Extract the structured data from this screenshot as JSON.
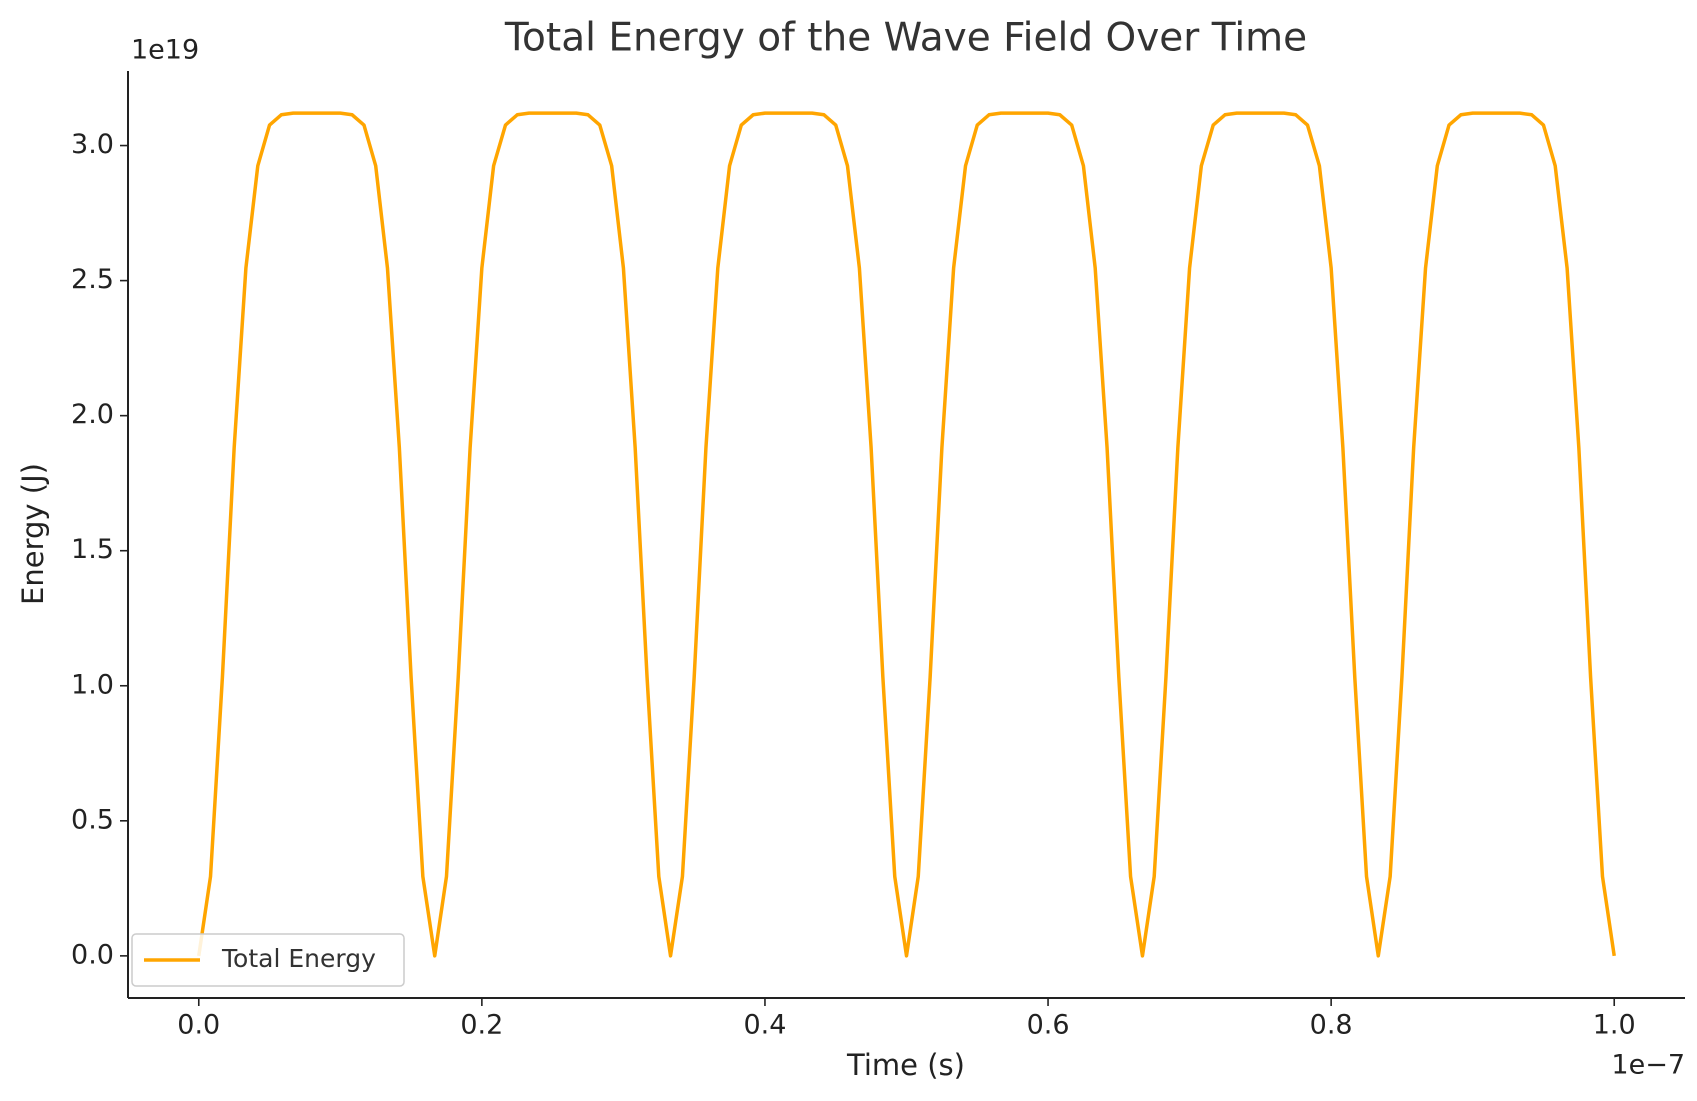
{
  "chart_data": {
    "type": "line",
    "title": "Total Energy of the Wave Field Over Time",
    "xlabel": "Time (s)",
    "ylabel": "Energy (J)",
    "x_offset_label": "1e−7",
    "y_offset_label": "1e19",
    "xlim": [
      -0.05,
      1.05
    ],
    "ylim": [
      -0.156,
      3.276
    ],
    "xticks": [
      {
        "value": 0,
        "label": "0.0"
      },
      0.2,
      0.4,
      0.6,
      0.8,
      {
        "value": 1,
        "label": "1.0"
      }
    ],
    "yticks": [
      {
        "value": 0,
        "label": "0.0"
      },
      0.5,
      {
        "value": 1,
        "label": "1.0"
      },
      1.5,
      {
        "value": 2,
        "label": "2.0"
      },
      2.5,
      {
        "value": 3,
        "label": "3.0"
      }
    ],
    "legend": "lower left",
    "x": [
      0,
      0.0083,
      0.0167,
      0.025,
      0.0333,
      0.0417,
      0.05,
      0.0583,
      0.0667,
      0.075,
      0.0833,
      0.0917,
      0.1,
      0.1083,
      0.1167,
      0.125,
      0.1333,
      0.1417,
      0.15,
      0.1583,
      0.1667,
      0.175,
      0.1833,
      0.1917,
      0.2,
      0.2083,
      0.2167,
      0.225,
      0.2333,
      0.2417,
      0.25,
      0.2583,
      0.2667,
      0.275,
      0.2833,
      0.2917,
      0.3,
      0.3083,
      0.3167,
      0.325,
      0.3333,
      0.3417,
      0.35,
      0.3583,
      0.3667,
      0.375,
      0.3833,
      0.3917,
      0.4,
      0.4083,
      0.4167,
      0.425,
      0.4333,
      0.4417,
      0.45,
      0.4583,
      0.4667,
      0.475,
      0.4833,
      0.4917,
      0.5,
      0.5083,
      0.5167,
      0.525,
      0.5333,
      0.5417,
      0.55,
      0.5583,
      0.5667,
      0.575,
      0.5833,
      0.5917,
      0.6,
      0.6083,
      0.6167,
      0.625,
      0.6333,
      0.6417,
      0.65,
      0.6583,
      0.6667,
      0.675,
      0.6833,
      0.6917,
      0.7,
      0.7083,
      0.7167,
      0.725,
      0.7333,
      0.7417,
      0.75,
      0.7583,
      0.7667,
      0.775,
      0.7833,
      0.7917,
      0.8,
      0.8083,
      0.8167,
      0.825,
      0.8333,
      0.8417,
      0.85,
      0.8583,
      0.8667,
      0.875,
      0.8833,
      0.8917,
      0.9,
      0.9083,
      0.9167,
      0.925,
      0.9333,
      0.9417,
      0.95,
      0.9583,
      0.9667,
      0.975,
      0.9833,
      0.9917,
      1.0
    ],
    "series": [
      {
        "name": "Total Energy",
        "color": "#ffa500",
        "values": [
          0,
          0.294,
          1.032,
          1.881,
          2.547,
          2.925,
          3.076,
          3.114,
          3.12,
          3.12,
          3.12,
          3.12,
          3.12,
          3.114,
          3.076,
          2.925,
          2.547,
          1.881,
          1.032,
          0.294,
          0,
          0.294,
          1.032,
          1.881,
          2.547,
          2.925,
          3.076,
          3.114,
          3.12,
          3.12,
          3.12,
          3.12,
          3.12,
          3.114,
          3.076,
          2.925,
          2.547,
          1.881,
          1.032,
          0.294,
          0,
          0.294,
          1.032,
          1.881,
          2.547,
          2.925,
          3.076,
          3.114,
          3.12,
          3.12,
          3.12,
          3.12,
          3.12,
          3.114,
          3.076,
          2.925,
          2.547,
          1.881,
          1.032,
          0.294,
          0,
          0.294,
          1.032,
          1.881,
          2.547,
          2.925,
          3.076,
          3.114,
          3.12,
          3.12,
          3.12,
          3.12,
          3.12,
          3.114,
          3.076,
          2.925,
          2.547,
          1.881,
          1.032,
          0.294,
          0,
          0.294,
          1.032,
          1.881,
          2.547,
          2.925,
          3.076,
          3.114,
          3.12,
          3.12,
          3.12,
          3.12,
          3.12,
          3.114,
          3.076,
          2.925,
          2.547,
          1.881,
          1.032,
          0.294,
          0,
          0.294,
          1.032,
          1.881,
          2.547,
          2.925,
          3.076,
          3.114,
          3.12,
          3.12,
          3.12,
          3.12,
          3.12,
          3.114,
          3.076,
          2.925,
          2.547,
          1.881,
          1.032,
          0.294,
          0
        ]
      }
    ]
  }
}
